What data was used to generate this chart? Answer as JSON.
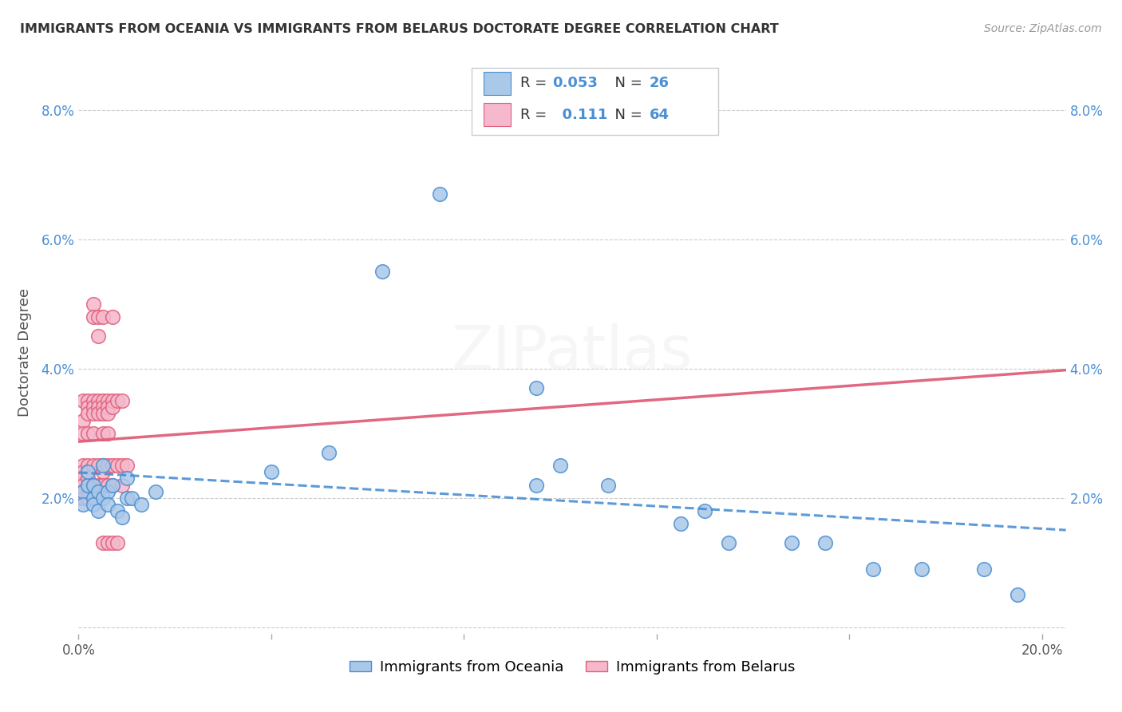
{
  "title": "IMMIGRANTS FROM OCEANIA VS IMMIGRANTS FROM BELARUS DOCTORATE DEGREE CORRELATION CHART",
  "source": "Source: ZipAtlas.com",
  "ylabel": "Doctorate Degree",
  "xlim": [
    0.0,
    0.205
  ],
  "ylim": [
    -0.001,
    0.086
  ],
  "color_oceania": "#aac8e8",
  "color_belarus": "#f5b8cc",
  "line_color_oceania": "#4a8fd4",
  "line_color_belarus": "#e0607a",
  "background_color": "#ffffff",
  "grid_color": "#cccccc",
  "oceania_x": [
    0.001,
    0.001,
    0.002,
    0.002,
    0.003,
    0.003,
    0.003,
    0.004,
    0.004,
    0.005,
    0.005,
    0.006,
    0.006,
    0.007,
    0.008,
    0.009,
    0.01,
    0.01,
    0.011,
    0.013,
    0.016,
    0.04,
    0.052,
    0.063,
    0.075,
    0.095,
    0.095,
    0.1,
    0.11,
    0.125,
    0.13,
    0.135,
    0.148,
    0.155,
    0.165,
    0.175,
    0.188,
    0.195
  ],
  "oceania_y": [
    0.021,
    0.019,
    0.022,
    0.024,
    0.02,
    0.019,
    0.022,
    0.021,
    0.018,
    0.025,
    0.02,
    0.021,
    0.019,
    0.022,
    0.018,
    0.017,
    0.02,
    0.023,
    0.02,
    0.019,
    0.021,
    0.024,
    0.027,
    0.055,
    0.067,
    0.022,
    0.037,
    0.025,
    0.022,
    0.016,
    0.018,
    0.013,
    0.013,
    0.013,
    0.009,
    0.009,
    0.009,
    0.005
  ],
  "belarus_x": [
    0.0,
    0.0,
    0.001,
    0.001,
    0.001,
    0.001,
    0.001,
    0.001,
    0.001,
    0.001,
    0.001,
    0.002,
    0.002,
    0.002,
    0.002,
    0.002,
    0.002,
    0.002,
    0.002,
    0.002,
    0.003,
    0.003,
    0.003,
    0.003,
    0.003,
    0.003,
    0.003,
    0.003,
    0.004,
    0.004,
    0.004,
    0.004,
    0.004,
    0.004,
    0.004,
    0.005,
    0.005,
    0.005,
    0.005,
    0.005,
    0.005,
    0.005,
    0.005,
    0.005,
    0.006,
    0.006,
    0.006,
    0.006,
    0.006,
    0.006,
    0.006,
    0.007,
    0.007,
    0.007,
    0.007,
    0.007,
    0.007,
    0.008,
    0.008,
    0.008,
    0.009,
    0.009,
    0.009,
    0.01
  ],
  "belarus_y": [
    0.022,
    0.02,
    0.035,
    0.032,
    0.03,
    0.025,
    0.024,
    0.023,
    0.022,
    0.021,
    0.02,
    0.035,
    0.034,
    0.033,
    0.03,
    0.025,
    0.024,
    0.023,
    0.022,
    0.02,
    0.05,
    0.048,
    0.035,
    0.034,
    0.033,
    0.03,
    0.025,
    0.022,
    0.048,
    0.045,
    0.035,
    0.034,
    0.033,
    0.025,
    0.022,
    0.048,
    0.035,
    0.034,
    0.033,
    0.03,
    0.025,
    0.024,
    0.022,
    0.013,
    0.035,
    0.034,
    0.033,
    0.03,
    0.025,
    0.022,
    0.013,
    0.048,
    0.035,
    0.034,
    0.025,
    0.022,
    0.013,
    0.035,
    0.025,
    0.013,
    0.035,
    0.025,
    0.022,
    0.025
  ]
}
